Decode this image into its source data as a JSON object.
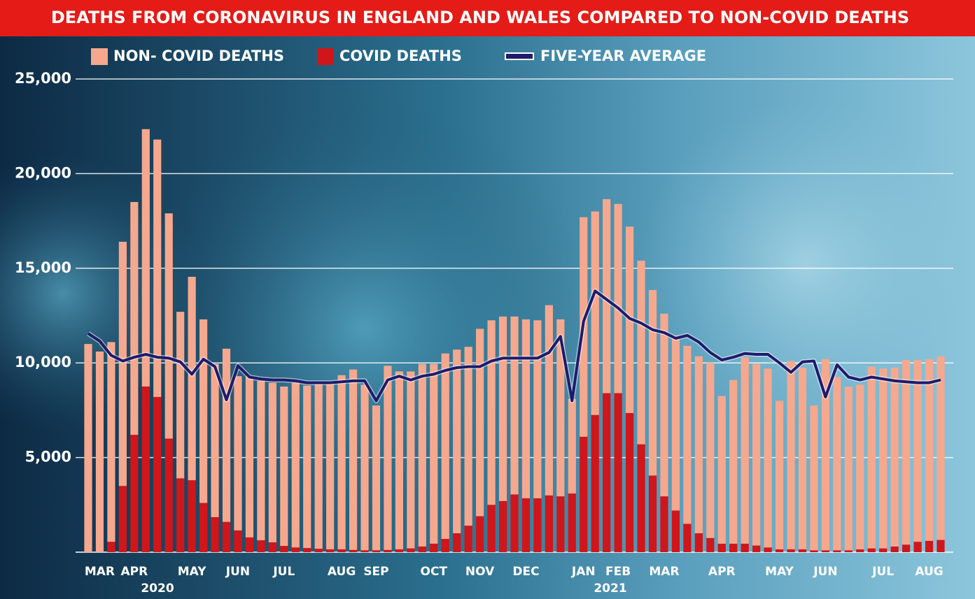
{
  "chart_data": {
    "type": "stacked-bar-line",
    "title": "DEATHS FROM CORONAVIRUS IN ENGLAND AND WALES COMPARED TO NON-COVID  DEATHS",
    "categories": [
      null,
      "MAR",
      null,
      null,
      "APR",
      null,
      null,
      null,
      null,
      "MAY",
      null,
      null,
      null,
      "JUN",
      null,
      null,
      null,
      "JUL",
      null,
      null,
      null,
      null,
      "AUG",
      null,
      null,
      "SEP",
      null,
      null,
      null,
      null,
      "OCT",
      null,
      null,
      null,
      "NOV",
      null,
      null,
      null,
      "DEC",
      null,
      null,
      null,
      null,
      "JAN",
      null,
      null,
      "FEB",
      null,
      null,
      null,
      "MAR",
      null,
      null,
      null,
      null,
      "APR",
      null,
      null,
      null,
      null,
      "MAY",
      null,
      null,
      null,
      "JUN",
      null,
      null,
      null,
      null,
      "JUL",
      null,
      null,
      null,
      "AUG",
      null
    ],
    "year_labels": [
      "2020",
      "2021"
    ],
    "series": [
      {
        "name": "COVID DEATHS",
        "color": "#d0161a",
        "values": [
          0,
          0,
          550,
          3500,
          6200,
          8750,
          8200,
          6000,
          3900,
          3800,
          2600,
          1850,
          1600,
          1150,
          780,
          630,
          520,
          330,
          250,
          220,
          180,
          150,
          150,
          120,
          100,
          100,
          120,
          150,
          200,
          300,
          450,
          700,
          1000,
          1400,
          1900,
          2500,
          2700,
          3050,
          2850,
          2850,
          3000,
          2950,
          3100,
          6100,
          7250,
          8400,
          8400,
          7350,
          5700,
          4050,
          2950,
          2200,
          1500,
          1000,
          750,
          450,
          450,
          450,
          350,
          250,
          150,
          150,
          150,
          100,
          100,
          100,
          100,
          150,
          200,
          200,
          300,
          400,
          550,
          600,
          650
        ]
      },
      {
        "name": "NON- COVID DEATHS",
        "color": "#f5a88e",
        "values": [
          11000,
          10600,
          10550,
          12900,
          12300,
          13600,
          13600,
          11900,
          8800,
          10750,
          9700,
          8100,
          9150,
          8150,
          8520,
          8420,
          8430,
          8420,
          8700,
          8580,
          8770,
          8750,
          9200,
          9530,
          8750,
          7650,
          9730,
          9400,
          9350,
          9650,
          9500,
          9800,
          9700,
          9450,
          9900,
          9750,
          9750,
          9400,
          9450,
          9400,
          10050,
          9350,
          5000,
          11600,
          10750,
          10250,
          10000,
          9850,
          9700,
          9800,
          9650,
          9250,
          9400,
          9350,
          9250,
          7800,
          8650,
          9850,
          9600,
          9450,
          7850,
          9950,
          9600,
          7650,
          10100,
          9150,
          8650,
          8700,
          9600,
          9500,
          9450,
          9750,
          9600,
          9600,
          9700
        ]
      },
      {
        "name": "FIVE-YEAR AVERAGE",
        "color": "#1f1b6b",
        "kind": "line",
        "values": [
          11550,
          11150,
          10400,
          10100,
          10300,
          10450,
          10300,
          10250,
          10050,
          9400,
          10200,
          9800,
          8050,
          9850,
          9250,
          9150,
          9100,
          9100,
          9050,
          8950,
          8950,
          8950,
          9000,
          9050,
          9050,
          8000,
          9100,
          9300,
          9100,
          9300,
          9400,
          9600,
          9750,
          9800,
          9800,
          10100,
          10250,
          10250,
          10250,
          10250,
          10550,
          11400,
          8000,
          12200,
          13800,
          13350,
          12900,
          12350,
          12100,
          11750,
          11600,
          11300,
          11450,
          11100,
          10550,
          10150,
          10300,
          10500,
          10450,
          10450,
          10000,
          9500,
          10050,
          10100,
          8200,
          9900,
          9250,
          9100,
          9250,
          9150,
          9050,
          9000,
          8950,
          8950,
          9100
        ]
      }
    ],
    "legend_order": [
      1,
      0,
      2
    ],
    "ylim": [
      0,
      25000
    ],
    "yticks": [
      {
        "value": 5000,
        "label": "5,000"
      },
      {
        "value": 10000,
        "label": "10,000"
      },
      {
        "value": 15000,
        "label": "15,000"
      },
      {
        "value": 20000,
        "label": "20,000"
      },
      {
        "value": 25000,
        "label": "25,000"
      }
    ],
    "grid": true
  }
}
